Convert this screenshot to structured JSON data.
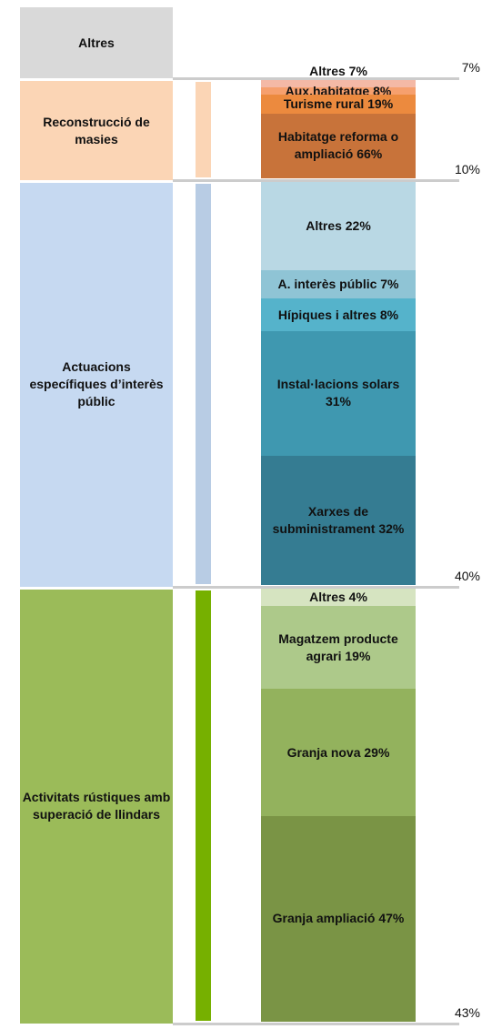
{
  "chart_data": {
    "type": "stacked_breakdown",
    "groups": [
      {
        "name": "Altres",
        "value": 7,
        "value_label": "7%",
        "color": "#d9d9d9"
      },
      {
        "name": "Reconstrucció de masies",
        "value": 10,
        "value_label": "10%",
        "color": "#fbd5b5",
        "bar_color": "#fbd5b5",
        "segments": {
          "labels": [
            "Altres 7%",
            "Aux.habitatge 8%",
            "Turisme rural 19%",
            "Habitatge reforma o ampliació 66%"
          ],
          "values": [
            7,
            8,
            19,
            66
          ],
          "colors": [
            "#f4b9a6",
            "#f6a06e",
            "#ec8a3e",
            "#c8733a"
          ]
        }
      },
      {
        "name": "Actuacions específiques d’interès públic",
        "value": 40,
        "value_label": "40%",
        "color": "#c6d9f1",
        "bar_color": "#b8cce4",
        "segments": {
          "labels": [
            "Altres 22%",
            "A. interès públic 7%",
            "Hípiques i altres 8%",
            "Instal·lacions solars 31%",
            "Xarxes de subministrament 32%"
          ],
          "values": [
            22,
            7,
            8,
            31,
            32
          ],
          "colors": [
            "#b9d8e4",
            "#8fc4d5",
            "#55b3cb",
            "#3f98b0",
            "#357c92"
          ]
        }
      },
      {
        "name": "Activitats rústiques amb superació de llindars",
        "value": 43,
        "value_label": "43%",
        "color": "#9bbb59",
        "bar_color": "#76b000",
        "segments": {
          "labels": [
            "Altres 4%",
            "Magatzem producte agrari 19%",
            "Granja nova 29%",
            "Granja ampliació 47%"
          ],
          "values": [
            4,
            19,
            29,
            47
          ],
          "colors": [
            "#d6e4c1",
            "#adc98a",
            "#93b25d",
            "#7a9445"
          ]
        }
      }
    ]
  }
}
